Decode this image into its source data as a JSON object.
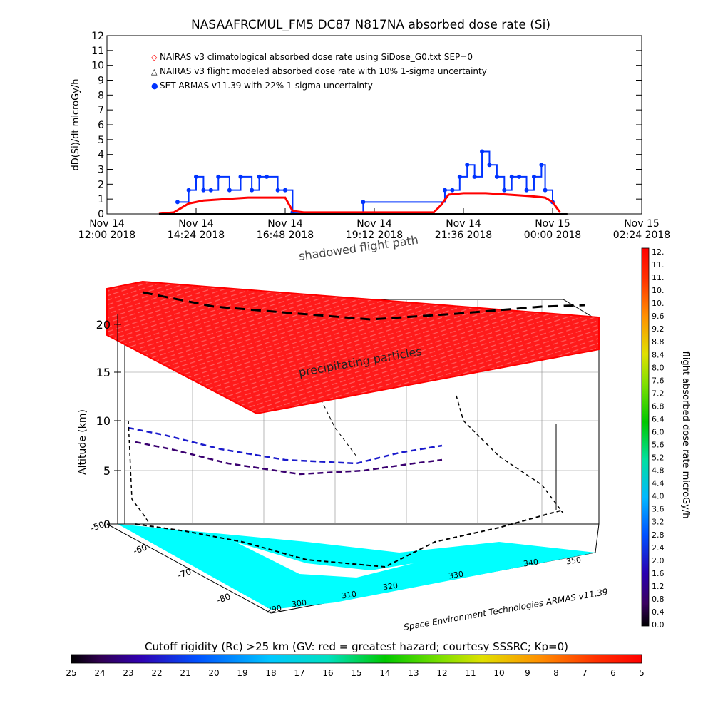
{
  "chart_data": [
    {
      "type": "line",
      "title": "NASAAFRCMUL_FM5 DC87 N817NA absorbed dose rate (Si)",
      "ylabel": "dD(Si)/dt microGy/h",
      "ylim": [
        0,
        12
      ],
      "yticks": [
        "0",
        "1",
        "2",
        "3",
        "4",
        "5",
        "6",
        "7",
        "8",
        "9",
        "10",
        "11",
        "12"
      ],
      "xticks": [
        {
          "date": "Nov 14",
          "time": "12:00 2018"
        },
        {
          "date": "Nov 14",
          "time": "14:24 2018"
        },
        {
          "date": "Nov 14",
          "time": "16:48 2018"
        },
        {
          "date": "Nov 14",
          "time": "19:12 2018"
        },
        {
          "date": "Nov 14",
          "time": "21:36 2018"
        },
        {
          "date": "Nov 15",
          "time": "00:00 2018"
        },
        {
          "date": "Nov 15",
          "time": "02:24 2018"
        }
      ],
      "legend": [
        {
          "symbol": "◇",
          "color": "#ff0000",
          "label": "NAIRAS v3 climatological absorbed dose rate using SiDose_G0.txt SEP=0"
        },
        {
          "symbol": "△",
          "color": "#000000",
          "label": "NAIRAS v3 flight modeled absorbed dose rate with 10% 1-sigma uncertainty"
        },
        {
          "symbol": "●",
          "color": "#0033ff",
          "label": "SET ARMAS v11.39 with 22% 1-sigma uncertainty"
        }
      ],
      "series": [
        {
          "name": "NAIRAS v3 climatological absorbed dose rate using SiDose_G0.txt SEP=0",
          "x_hours": [
            13.4,
            13.8,
            14.0,
            14.2,
            14.6,
            15.2,
            15.8,
            16.4,
            16.8,
            17.0,
            17.3,
            19.0,
            20.8,
            21.0,
            21.2,
            21.6,
            22.2,
            22.8,
            23.4,
            23.8,
            24.0,
            24.2
          ],
          "values": [
            0,
            0.1,
            0.4,
            0.7,
            0.9,
            1.0,
            1.1,
            1.1,
            1.1,
            0.2,
            0.1,
            0.1,
            0.1,
            0.6,
            1.3,
            1.4,
            1.4,
            1.3,
            1.2,
            1.1,
            0.8,
            0.1
          ]
        },
        {
          "name": "SET ARMAS v11.39 with 22% 1-sigma uncertainty",
          "x_hours": [
            13.9,
            14.2,
            14.4,
            14.6,
            14.8,
            15.0,
            15.3,
            15.6,
            15.9,
            16.1,
            16.3,
            16.6,
            16.8,
            17.0,
            18.9,
            21.1,
            21.3,
            21.5,
            21.7,
            21.9,
            22.1,
            22.3,
            22.5,
            22.7,
            22.9,
            23.1,
            23.3,
            23.5,
            23.7,
            23.8,
            24.0
          ],
          "values": [
            0.8,
            1.6,
            2.5,
            1.6,
            1.6,
            2.5,
            1.6,
            2.5,
            1.6,
            2.5,
            2.5,
            1.6,
            1.6,
            0.1,
            0.8,
            1.6,
            1.6,
            2.5,
            3.3,
            2.5,
            4.2,
            3.3,
            2.5,
            1.6,
            2.5,
            2.5,
            1.6,
            2.5,
            3.3,
            1.6,
            0.8
          ]
        }
      ]
    },
    {
      "type": "scatter",
      "subtype": "3d-flight-track",
      "zlabel": "Altitude (km)",
      "zticks": [
        "0",
        "5",
        "10",
        "15",
        "20"
      ],
      "lat_ticks": [
        "-50",
        "-60",
        "-70",
        "-80"
      ],
      "lon_ticks": [
        "290",
        "300",
        "310",
        "320",
        "330",
        "340",
        "350"
      ],
      "annotations": [
        "shadowed flight path",
        "precipitating particles"
      ],
      "credit": "Space Environment Technologies ARMAS v11.39",
      "colorbar": {
        "label": "flight absorbed dose rate microGy/h",
        "ticks": [
          "0.0",
          "0.4",
          "0.8",
          "1.2",
          "1.6",
          "2.0",
          "2.4",
          "2.8",
          "3.2",
          "3.6",
          "4.0",
          "4.4",
          "4.8",
          "5.2",
          "5.6",
          "6.0",
          "6.4",
          "6.8",
          "7.2",
          "7.6",
          "8.0",
          "8.4",
          "8.8",
          "9.2",
          "9.6",
          "10.",
          "10.",
          "11.",
          "11.",
          "12."
        ]
      },
      "bottom_colorbar": {
        "label": "Cutoff rigidity (Rc) >25 km (GV: red = greatest hazard; courtesy SSSRC; Kp=0)",
        "ticks": [
          "25",
          "24",
          "23",
          "22",
          "21",
          "20",
          "19",
          "18",
          "17",
          "16",
          "15",
          "14",
          "13",
          "12",
          "11",
          "10",
          "9",
          "8",
          "7",
          "6",
          "5"
        ]
      },
      "colors": {
        "hazard": "#ff0000",
        "ice": "#00ffff",
        "track": "#000000"
      }
    }
  ]
}
